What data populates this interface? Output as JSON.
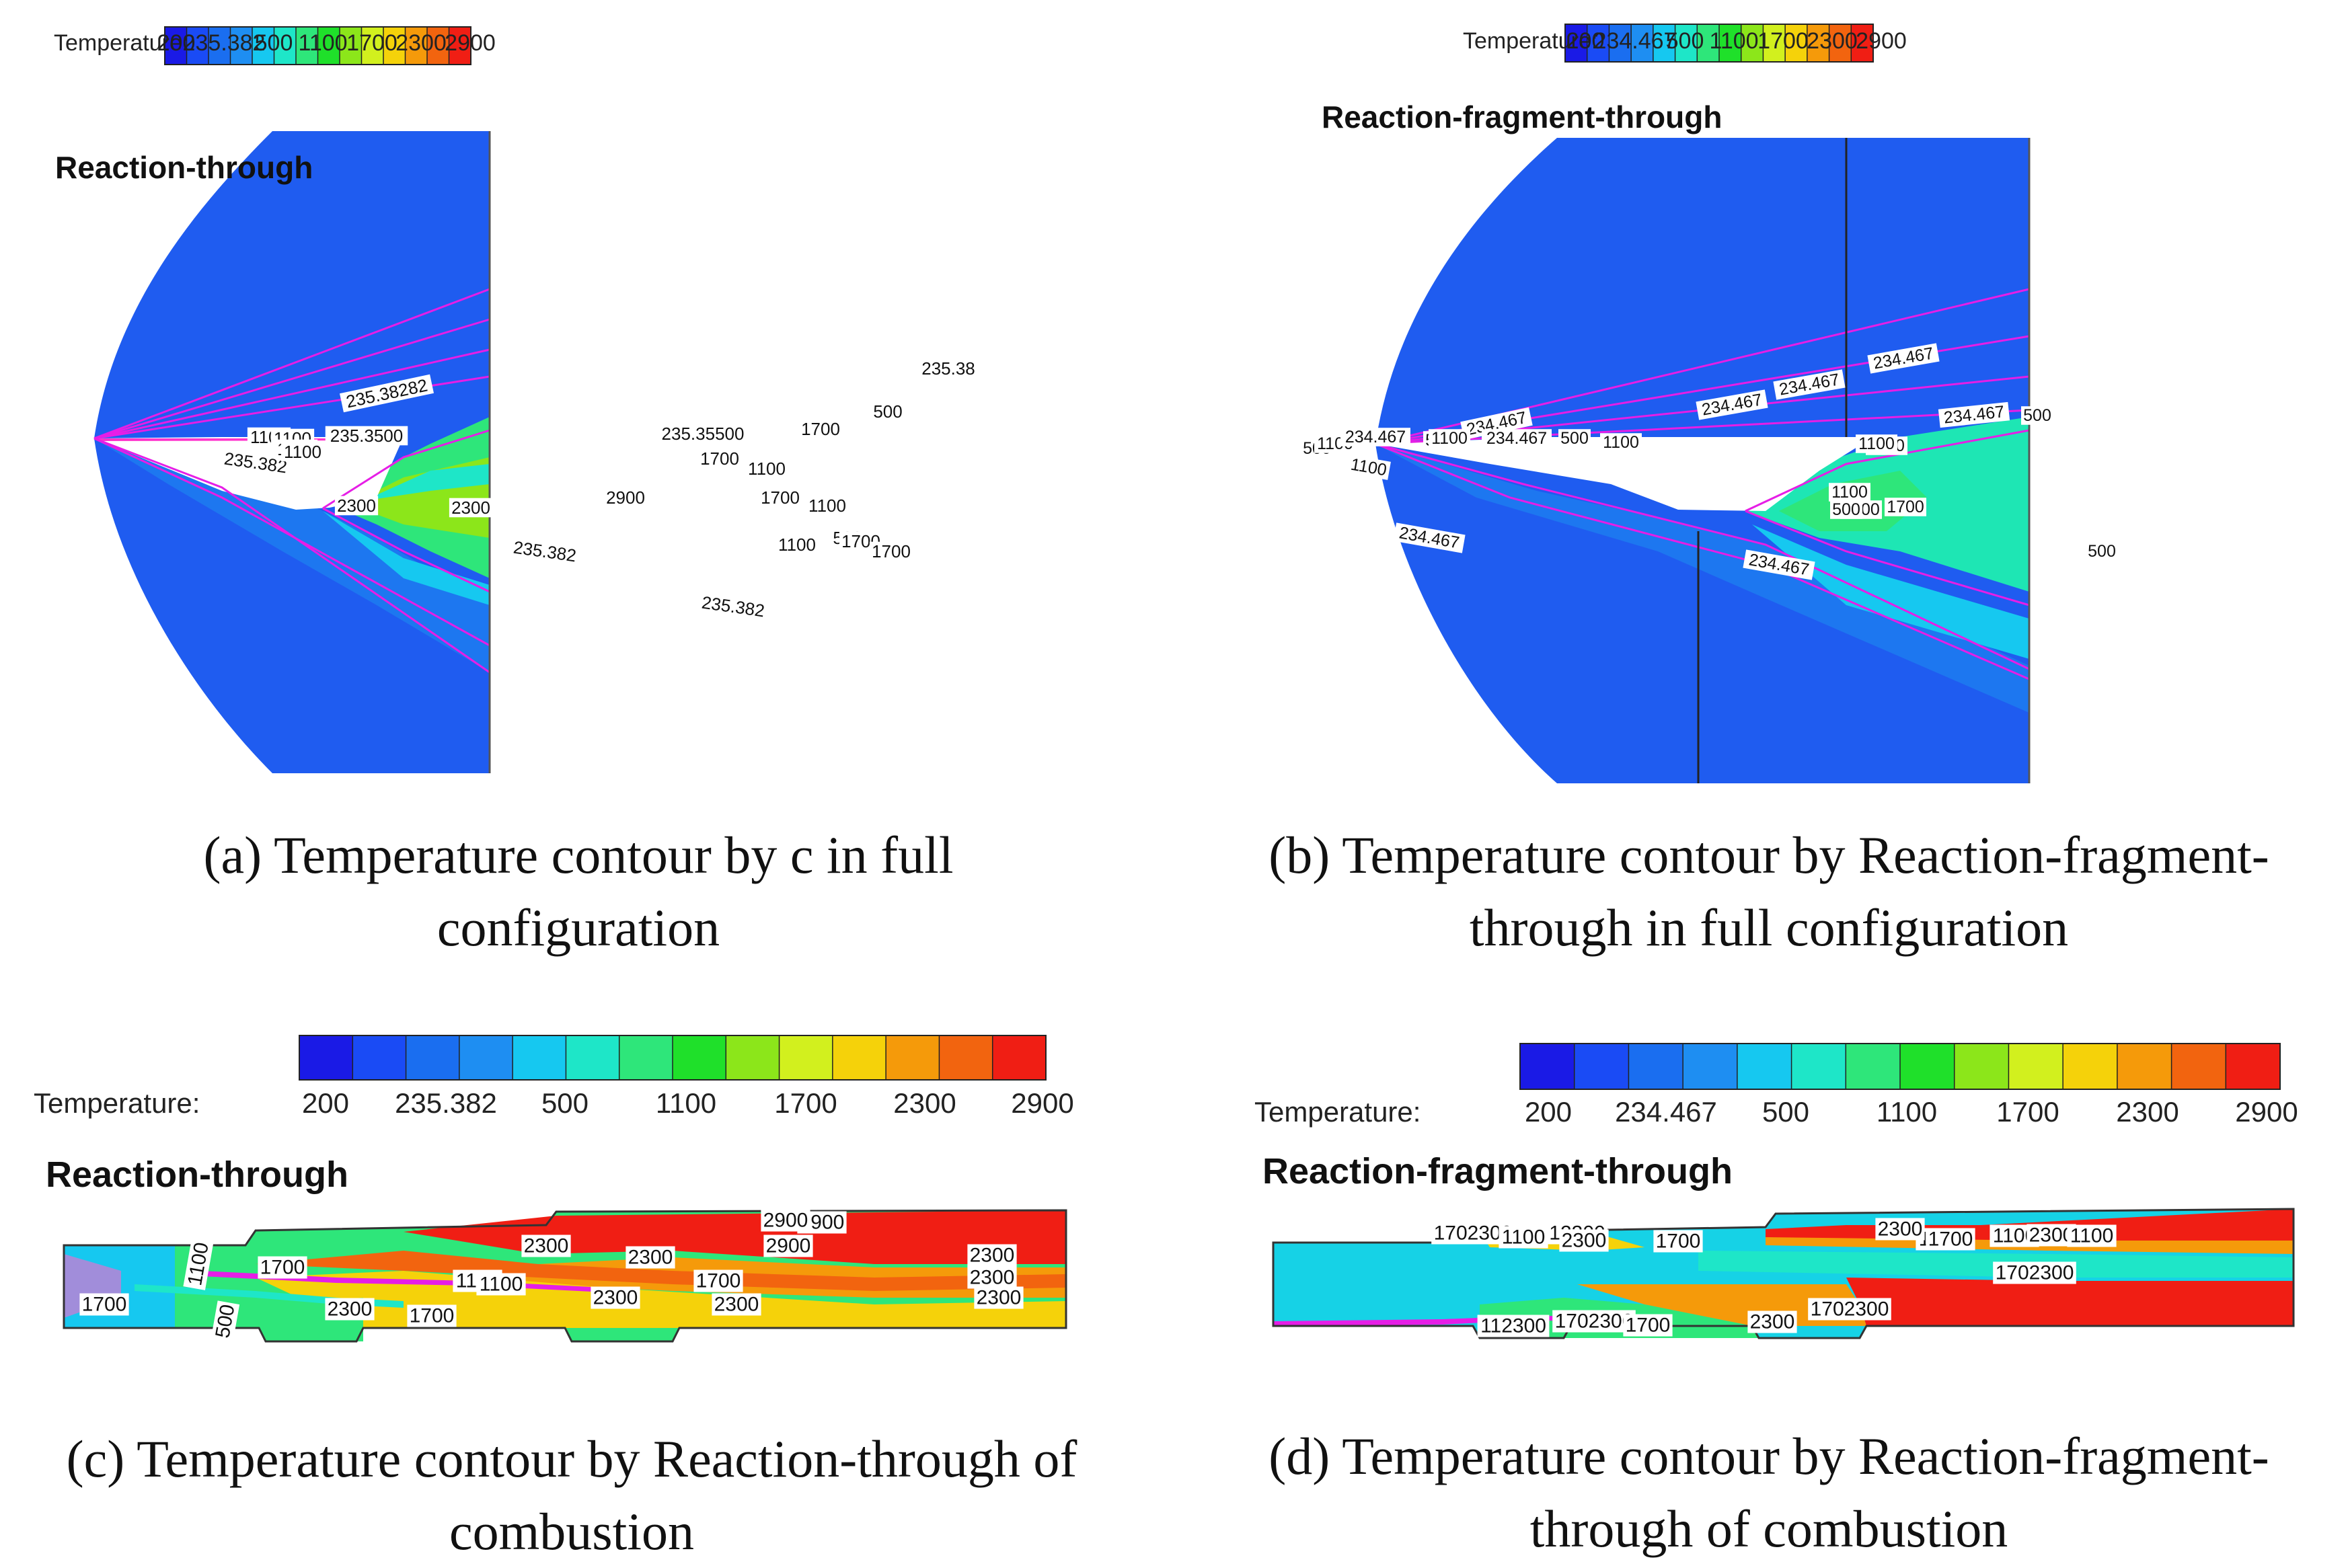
{
  "colorbar": {
    "colors": [
      "#1a1ae6",
      "#1a4bf5",
      "#1a6ef0",
      "#1e8ef2",
      "#16c8f0",
      "#1ee6c8",
      "#2ee67a",
      "#1fe02a",
      "#8ce61a",
      "#d2f01e",
      "#f5d20a",
      "#f59a0a",
      "#f2640f",
      "#f01e14"
    ]
  },
  "panels": [
    {
      "id": "a",
      "legend_label": "Temperature:",
      "ticks": [
        "200",
        "235.382",
        "500",
        "1100",
        "1700",
        "2300",
        "2900"
      ],
      "plot_title": "Reaction-through",
      "caption": [
        "(a) Temperature contour by c in full",
        "configuration"
      ],
      "contour_labels": [
        "235.38282",
        "1100",
        "235.3500",
        "1100",
        "235.35500",
        "1100",
        "235.382",
        "1100",
        "2300",
        "2300",
        "2900",
        "1700",
        "500",
        "1700",
        "1100",
        "1700",
        "1100",
        "500",
        "1100",
        "1700",
        "1700",
        "235.382",
        "235.382",
        "235.38"
      ]
    },
    {
      "id": "b",
      "legend_label": "Temperature:",
      "ticks": [
        "200",
        "234.467",
        "500",
        "1100",
        "1700",
        "2300",
        "2900"
      ],
      "plot_title": "Reaction-fragment-through",
      "caption": [
        "(b) Temperature contour by Reaction-fragment-",
        "through in full configuration"
      ],
      "contour_labels": [
        "234.467",
        "234.467",
        "234.467",
        "234.467",
        "500",
        "1100",
        "234.467",
        "500",
        "1100",
        "234.467",
        "500",
        "1100",
        "1100",
        "234.467",
        "500",
        "1100",
        "1700",
        "1700",
        "234.467",
        "1100",
        "234.467",
        "1100",
        "500",
        "500"
      ]
    },
    {
      "id": "c",
      "legend_label": "Temperature:",
      "ticks": [
        "200",
        "235.382",
        "500",
        "1100",
        "1700",
        "2300",
        "2900"
      ],
      "plot_title": "Reaction-through",
      "caption": [
        "(c) Temperature contour by Reaction-through of",
        "combustion"
      ],
      "contour_labels": [
        "2900",
        "1100",
        "1700",
        "2300",
        "2900",
        "2300",
        "2300",
        "1100",
        "1100",
        "1700",
        "2300",
        "2300",
        "2300",
        "2900",
        "1700",
        "2300",
        "500",
        "2300",
        "1700"
      ]
    },
    {
      "id": "d",
      "legend_label": "Temperature:",
      "ticks": [
        "200",
        "234.467",
        "500",
        "1100",
        "1700",
        "2300",
        "2900"
      ],
      "plot_title": "Reaction-fragment-through",
      "caption": [
        "(d) Temperature contour by Reaction-fragment-",
        "through of combustion"
      ],
      "contour_labels": [
        "1702300",
        "1100",
        "12300",
        "2300",
        "1700",
        "1100",
        "2300",
        "1700",
        "1100",
        "2300",
        "1100",
        "112300",
        "1702300",
        "1700",
        "2300",
        "1702300",
        "1702300"
      ]
    }
  ]
}
